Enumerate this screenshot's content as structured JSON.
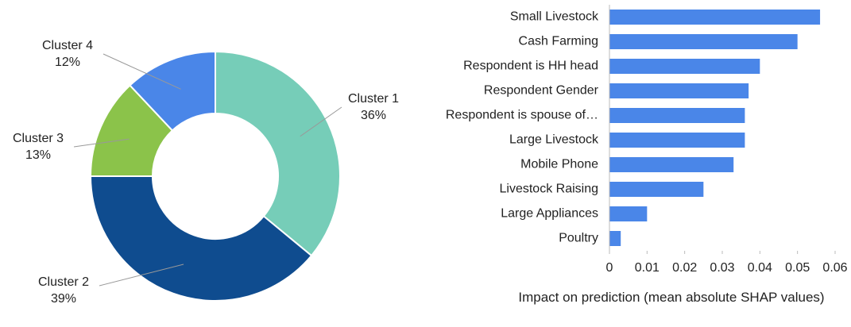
{
  "chart_data": [
    {
      "type": "donut",
      "categories": [
        "Cluster 1",
        "Cluster 2",
        "Cluster 3",
        "Cluster 4"
      ],
      "values": [
        36,
        39,
        13,
        12
      ],
      "value_labels": [
        "36%",
        "39%",
        "13%",
        "12%"
      ],
      "colors": [
        "#76cdb8",
        "#0f4c8f",
        "#8bc34a",
        "#4a86e8"
      ]
    },
    {
      "type": "hbar",
      "categories": [
        "Small Livestock",
        "Cash Farming",
        "Respondent is HH head",
        "Respondent Gender",
        "Respondent is spouse of…",
        "Large Livestock",
        "Mobile Phone",
        "Livestock Raising",
        "Large Appliances",
        "Poultry"
      ],
      "values": [
        0.056,
        0.05,
        0.04,
        0.037,
        0.036,
        0.036,
        0.033,
        0.025,
        0.01,
        0.003
      ],
      "color": "#4a86e8",
      "xlim": [
        0,
        0.06
      ],
      "xticks": [
        0,
        0.01,
        0.02,
        0.03,
        0.04,
        0.05,
        0.06
      ],
      "xlabel": "Impact on prediction (mean absolute SHAP values)"
    }
  ]
}
